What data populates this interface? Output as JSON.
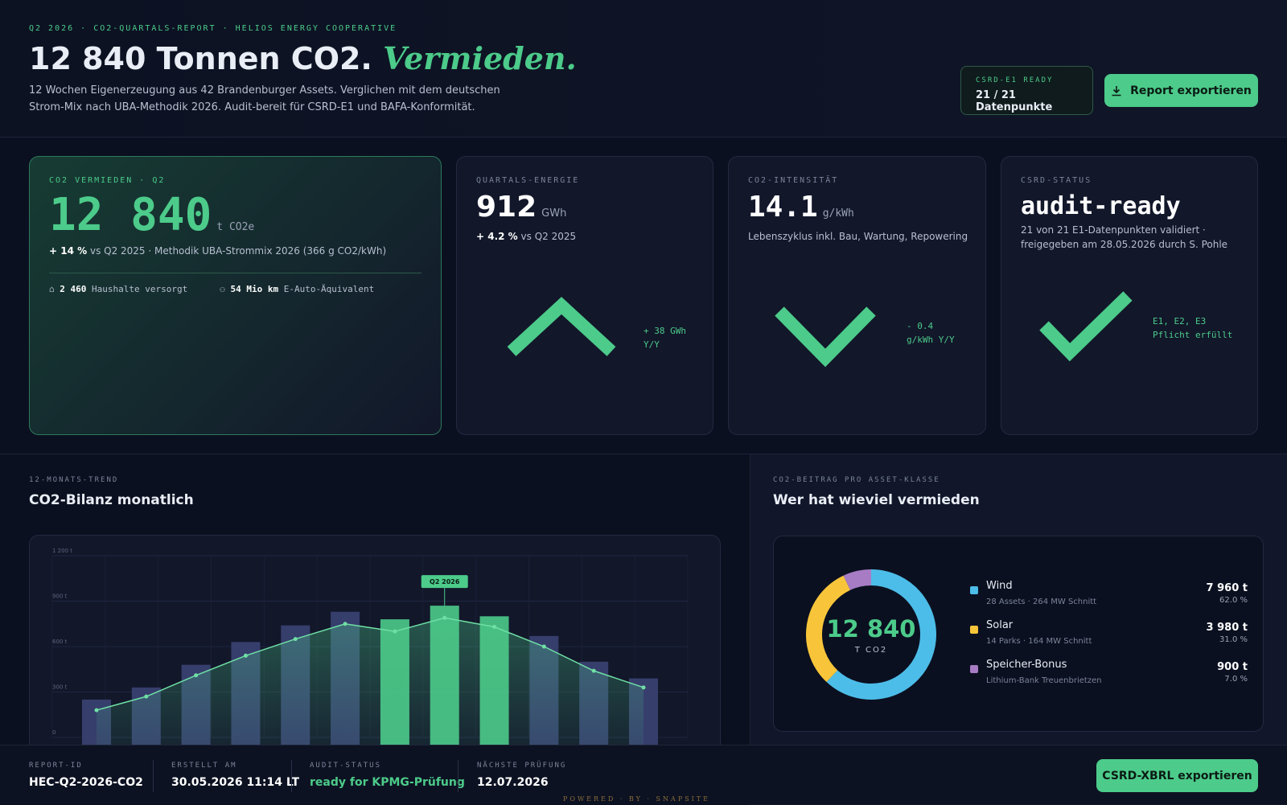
{
  "header": {
    "eyebrow": "Q2 2026 · CO2-QUARTALS-REPORT · HELIOS ENERGY COOPERATIVE",
    "title": "12 840 Tonnen CO2.",
    "title_accent": "Vermieden.",
    "subtitle_1": "12 Wochen Eigenerzeugung aus 42 Brandenburger Assets. Verglichen mit dem deutschen",
    "subtitle_2": "Strom-Mix nach UBA-Methodik 2026. Audit-bereit für CSRD-E1 und BAFA-Konformität.",
    "badge_label": "CSRD-E1 READY",
    "badge_value": "21 / 21 Datenpunkte",
    "button": "Report exportieren"
  },
  "kpis": [
    {
      "eyebrow": "CO2 VERMIEDEN · Q2",
      "value": "12 840",
      "unit": "t CO2e",
      "delta": "+ 14 %",
      "note": "vs Q2 2025 · Methodik UBA-Strommix 2026 (366 g CO2/kWh)",
      "stats": [
        {
          "value": "2 460",
          "label": "Haushalte versorgt"
        },
        {
          "value": "54 Mio km",
          "label": "E-Auto-Äquivalent"
        }
      ]
    },
    {
      "eyebrow": "QUARTALS-ENERGIE",
      "value": "912",
      "unit": "GWh",
      "delta": "+ 4.2 %",
      "note": "vs Q2 2025",
      "trend_1": "+ 38 GWh",
      "trend_2": "Y/Y"
    },
    {
      "eyebrow": "CO2-INTENSITÄT",
      "value": "14.1",
      "unit": "g/kWh",
      "note": "Lebenszyklus inkl. Bau, Wartung, Repowering",
      "trend_1": "- 0.4",
      "trend_2": "g/kWh Y/Y"
    },
    {
      "eyebrow": "CSRD-STATUS",
      "value": "audit-ready",
      "note_1": "21 von 21 E1-Datenpunkten validiert ·",
      "note_2": "freigegeben am 28.05.2026 durch S. Pohle",
      "trend_1": "E1, E2, E3",
      "trend_2": "Pflicht erfüllt"
    }
  ],
  "sections": [
    {
      "eyebrow": "12-MONATS-TREND",
      "title": "CO2-Bilanz monatlich"
    },
    {
      "eyebrow": "CO2-BEITRAG PRO ASSET-KLASSE",
      "title": "Wer hat wieviel vermieden"
    }
  ],
  "chart_data": [
    {
      "type": "bar",
      "categories": [
        null,
        null,
        null,
        null,
        null,
        null,
        null,
        null,
        null,
        null,
        null,
        null
      ],
      "series": [
        {
          "values": [
            250,
            330,
            480,
            630,
            740,
            830,
            780,
            870,
            800,
            670,
            500,
            390
          ],
          "colors": [
            "#3b4373",
            "#3b4373",
            "#3b4373",
            "#3b4373",
            "#3b4373",
            "#3b4373",
            "#4ccb8a",
            "#4ccb8a",
            "#4ccb8a",
            "#3b4373",
            "#3b4373",
            "#3b4373"
          ]
        },
        {
          "values": [
            180,
            270,
            410,
            540,
            650,
            750,
            700,
            790,
            730,
            600,
            440,
            330
          ],
          "color": "#6fe0a5"
        }
      ],
      "annotation": "Q2 2026",
      "ylim": [
        0,
        1200
      ],
      "yticks": [
        0,
        {
          "value": 300,
          "label": "300 t"
        },
        {
          "value": 600,
          "label": "600 t"
        },
        {
          "value": 900,
          "label": "900 t"
        },
        {
          "value": 1200,
          "label": "1 200 t"
        }
      ],
      "grid": true
    },
    {
      "type": "pie",
      "center_value": "12 840",
      "center_label": "T CO2",
      "categories": [
        "Wind",
        "Solar",
        "Speicher-Bonus"
      ],
      "details": [
        "28 Assets · 264 MW Schnitt",
        "14 Parks · 164 MW Schnitt",
        "Lithium-Bank Treuenbrietzen"
      ],
      "tonnes": [
        "7 960 t",
        "3 980 t",
        "900 t"
      ],
      "values": [
        62,
        31,
        7
      ],
      "value_labels": [
        "62.0 %",
        "31.0 %",
        "7.0 %"
      ],
      "colors": [
        "#4cbde8",
        "#f8c53a",
        "#a77cc4"
      ]
    }
  ],
  "footer": {
    "items": [
      {
        "label": "REPORT-ID",
        "value": "HEC-Q2-2026-CO2"
      },
      {
        "label": "ERSTELLT AM",
        "value": "30.05.2026 11:14 LT"
      },
      {
        "label": "AUDIT-STATUS",
        "value": "ready for KPMG-Prüfung"
      },
      {
        "label": "NÄCHSTE PRÜFUNG",
        "value": "12.07.2026"
      }
    ],
    "button": "CSRD-XBRL exportieren",
    "powered": "POWERED · BY · SNAPSITE"
  }
}
